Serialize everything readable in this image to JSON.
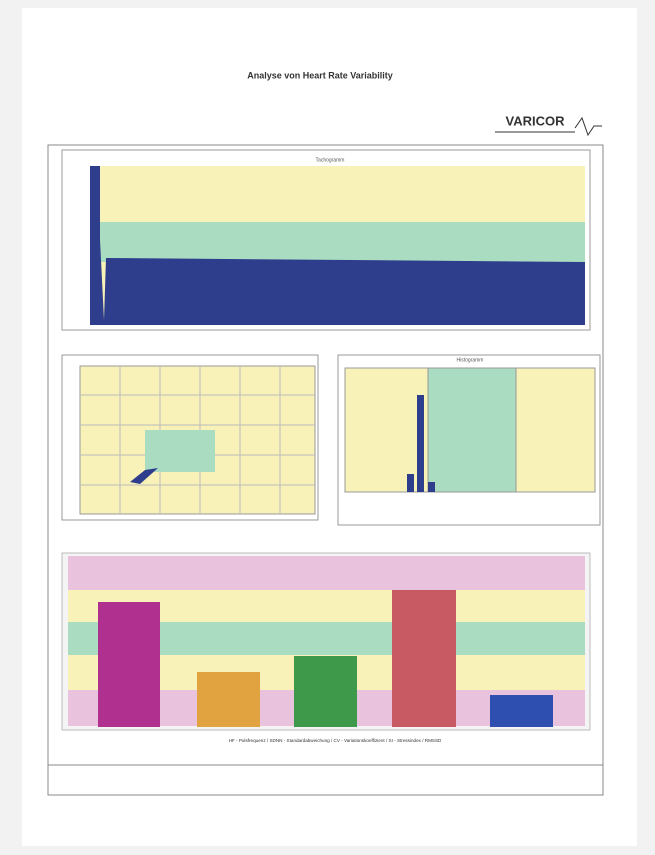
{
  "header": {
    "title": "Analyse von Heart Rate Variability",
    "logo": "VARICOR"
  },
  "panels": {
    "tachogram": {
      "title": "Tachogramm"
    },
    "histogram": {
      "title": "Histogramm"
    }
  },
  "legend": "HF - Pulsfrequenz / SDNN - Standardabweichung / CV - Variationskoeffizient / SI - Stressindex / RMSSD"
}
